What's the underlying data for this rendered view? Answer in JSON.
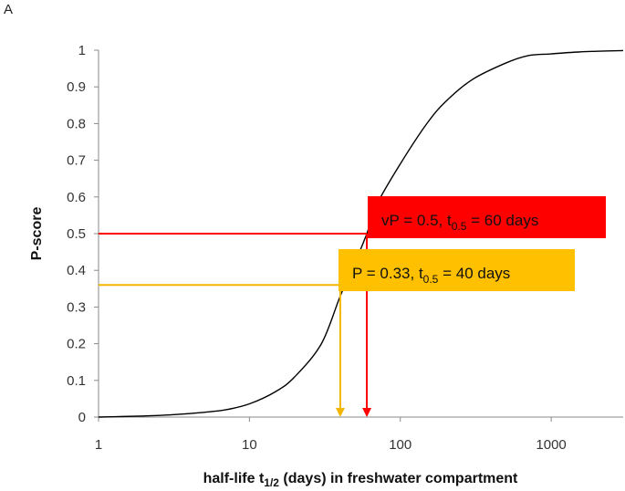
{
  "panel_label": "A",
  "chart_data": {
    "type": "line",
    "xscale": "log",
    "xlim": [
      1,
      3000
    ],
    "ylim": [
      0,
      1
    ],
    "xticks": [
      1,
      10,
      100,
      1000
    ],
    "xtick_labels": [
      "1",
      "10",
      "100",
      "1000"
    ],
    "yticks": [
      0,
      0.1,
      0.2,
      0.3,
      0.4,
      0.5,
      0.6,
      0.7,
      0.8,
      0.9,
      1
    ],
    "ytick_labels": [
      "0",
      "0.1",
      "0.2",
      "0.3",
      "0.4",
      "0.5",
      "0.6",
      "0.7",
      "0.8",
      "0.9",
      "1"
    ],
    "grid": false,
    "xlabel": {
      "prefix": "half-life t",
      "sub": "1/2",
      "suffix": " (days) in freshwater compartment"
    },
    "ylabel": "P-score",
    "series": [
      {
        "color": "#000000",
        "x": [
          1,
          2,
          3,
          5,
          7,
          10,
          15,
          20,
          30,
          40,
          50,
          60,
          70,
          100,
          150,
          200,
          300,
          500,
          700,
          1000,
          1500,
          2000,
          3000
        ],
        "y": [
          0.0,
          0.003,
          0.006,
          0.013,
          0.02,
          0.036,
          0.07,
          0.11,
          0.2,
          0.33,
          0.42,
          0.5,
          0.58,
          0.69,
          0.8,
          0.86,
          0.92,
          0.965,
          0.985,
          0.99,
          0.995,
          0.997,
          0.999
        ]
      }
    ],
    "annotations": [
      {
        "name": "vp",
        "color": "#ff0000",
        "x": 60,
        "y": 0.5,
        "text_prefix": "vP = 0.5, t",
        "text_sub": "0.5",
        "text_suffix": " = 60 days"
      },
      {
        "name": "p",
        "color": "#ffc000",
        "line_color": "#f2b600",
        "x": 40,
        "y": 0.36,
        "text_prefix": "P = 0.33, t",
        "text_sub": "0.5",
        "text_suffix": " = 40 days"
      }
    ]
  }
}
